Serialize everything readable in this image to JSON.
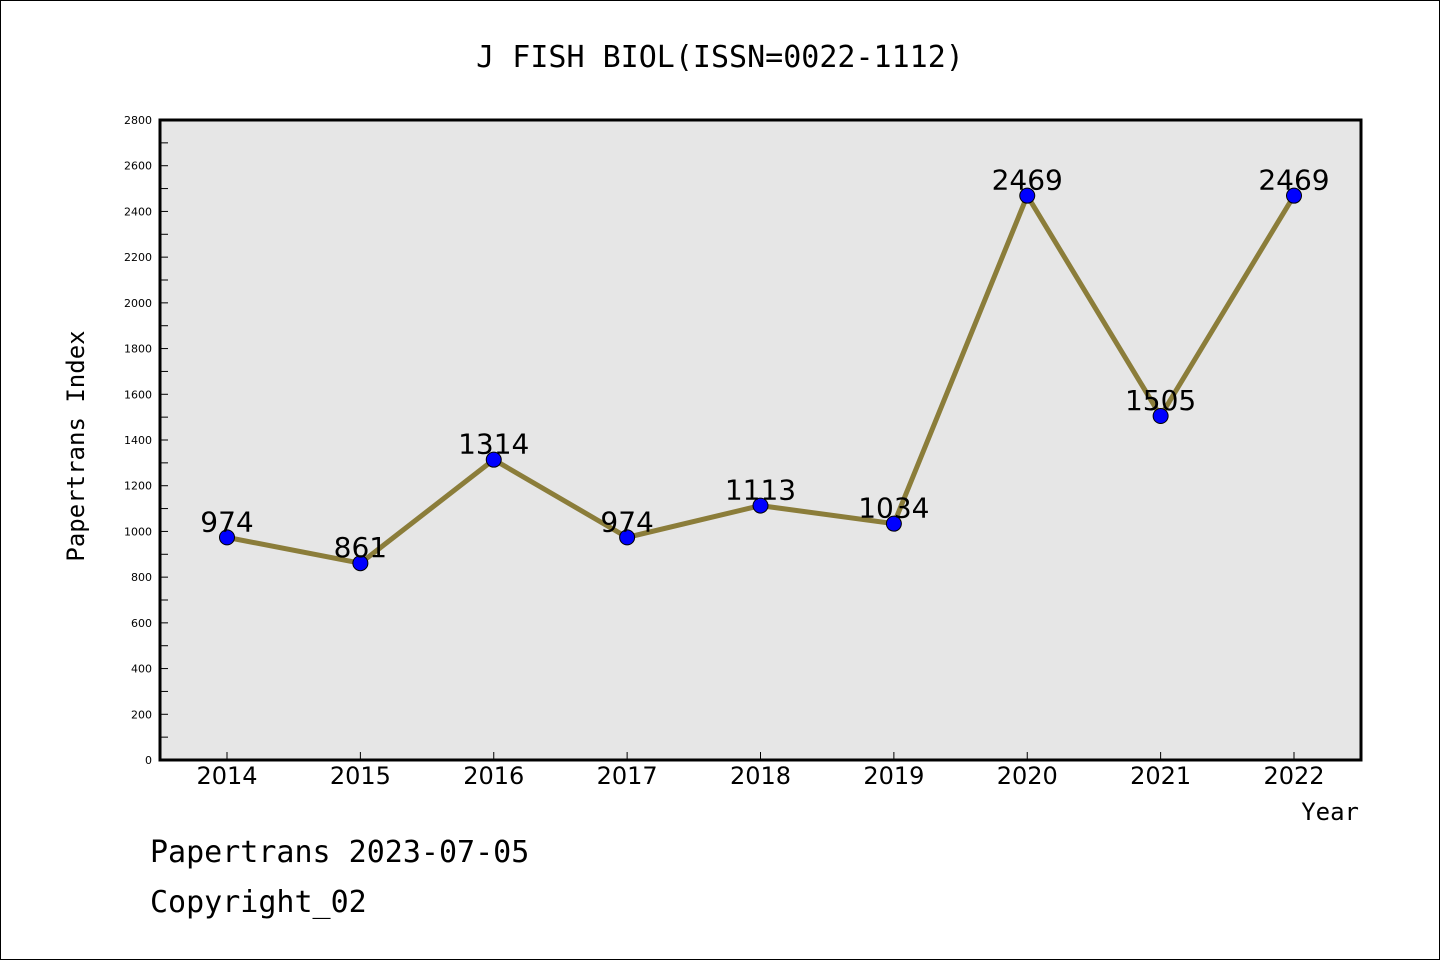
{
  "chart_data": {
    "type": "line",
    "title": "J FISH BIOL(ISSN=0022-1112)",
    "xlabel": "Year",
    "ylabel": "Papertrans Index",
    "categories": [
      "2014",
      "2015",
      "2016",
      "2017",
      "2018",
      "2019",
      "2020",
      "2021",
      "2022"
    ],
    "series": [
      {
        "values": [
          974,
          861,
          1314,
          974,
          1113,
          1034,
          2469,
          1505,
          2469
        ],
        "data_labels": [
          "974",
          "861",
          "1314",
          "974",
          "1113",
          "1034",
          "2469",
          "1505",
          "2469"
        ]
      }
    ],
    "ylim": [
      0,
      2800
    ],
    "yticks": [
      0,
      200,
      400,
      600,
      800,
      1000,
      1200,
      1400,
      1600,
      1800,
      2000,
      2200,
      2400,
      2600,
      2800
    ],
    "ytick_labels": [
      "0",
      "200",
      "400",
      "600",
      "800",
      "1000",
      "1200",
      "1400",
      "1600",
      "1800",
      "2000",
      "2200",
      "2400",
      "2600",
      "2800"
    ],
    "grid": false,
    "legend": "none",
    "colors": {
      "line": "#8b7d3a",
      "marker": "#0000ff",
      "plot_background": "#e6e6e6"
    }
  },
  "footer": {
    "line1": "Papertrans 2023-07-05",
    "line2": "Copyright_02"
  }
}
